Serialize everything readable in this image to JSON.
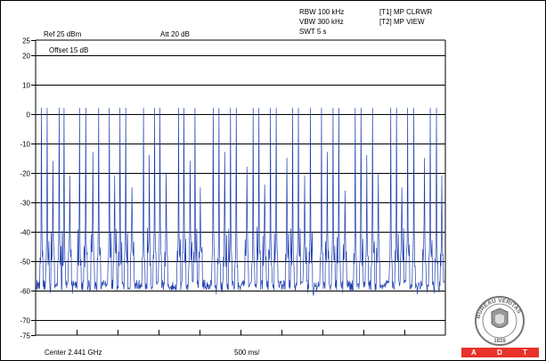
{
  "header": {
    "rbw": "RBW 100 kHz",
    "vbw": "VBW 300 kHz",
    "swt": "SWT 5 s",
    "trace1": "[T1] MP CLRWR",
    "trace2": "[T2] MP VIEW",
    "ref": "Ref 25 dBm",
    "att": "Att  20 dB",
    "offset": "Offset 15 dB"
  },
  "footer": {
    "center": "Center 2.441 GHz",
    "span": "500 ms/"
  },
  "logo": {
    "ring_text": "BUREAU VERITAS",
    "year": "1828",
    "letters": [
      "A",
      "D",
      "T"
    ],
    "color": "#e8322a"
  },
  "chart_data": {
    "type": "line",
    "title": "",
    "xlabel": "Center 2.441 GHz",
    "ylabel": "",
    "ylim": [
      -75,
      25
    ],
    "y_ticks": [
      25,
      20,
      10,
      0,
      -10,
      -20,
      -30,
      -40,
      -50,
      -60,
      -70,
      -75
    ],
    "x_divisions": 10,
    "grid": true,
    "series": [
      {
        "color": "#1f3fb0",
        "noise_floor_dbm": -58,
        "peak_dbm": 2,
        "burst_positions": [
          0.012,
          0.026,
          0.04,
          0.055,
          0.068,
          0.082,
          0.106,
          0.121,
          0.138,
          0.152,
          0.178,
          0.191,
          0.205,
          0.219,
          0.234,
          0.262,
          0.276,
          0.289,
          0.303,
          0.318,
          0.348,
          0.361,
          0.376,
          0.389,
          0.402,
          0.433,
          0.447,
          0.461,
          0.476,
          0.49,
          0.516,
          0.531,
          0.545,
          0.559,
          0.573,
          0.588,
          0.614,
          0.628,
          0.642,
          0.657,
          0.671,
          0.699,
          0.713,
          0.727,
          0.741,
          0.756,
          0.781,
          0.795,
          0.81,
          0.824,
          0.838,
          0.868,
          0.882,
          0.896,
          0.91,
          0.925,
          0.951,
          0.965,
          0.98,
          0.994
        ],
        "burst_peaks_dbm": [
          2,
          2,
          -16,
          2,
          2,
          -21,
          2,
          2,
          -13,
          2,
          2,
          -21,
          2,
          2,
          -25,
          2,
          -14,
          2,
          2,
          -20,
          2,
          2,
          -16,
          2,
          -25,
          2,
          2,
          -13,
          2,
          2,
          -18,
          2,
          2,
          -24,
          2,
          2,
          -15,
          2,
          2,
          -21,
          2,
          2,
          -13,
          2,
          2,
          -26,
          2,
          2,
          -14,
          2,
          -20,
          2,
          2,
          -25,
          2,
          2,
          -15,
          2,
          2,
          -21
        ]
      }
    ]
  }
}
